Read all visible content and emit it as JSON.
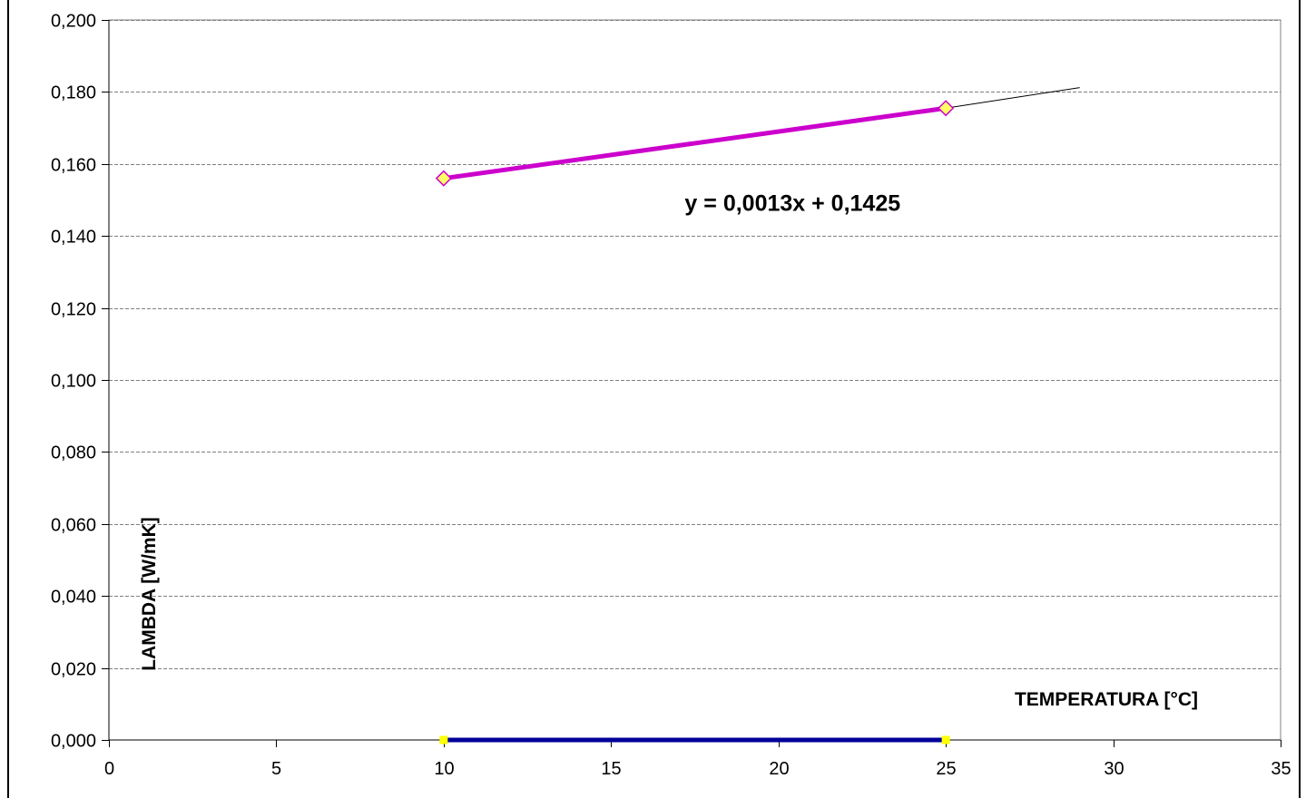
{
  "chart_data": {
    "type": "scatter",
    "title": "",
    "xlabel": "TEMPERATURA [°C]",
    "ylabel": "LAMBDA [W/mK]",
    "xlim": [
      0,
      35
    ],
    "ylim": [
      0,
      0.2
    ],
    "x_ticks": [
      0,
      5,
      10,
      15,
      20,
      25,
      30,
      35
    ],
    "x_tick_labels": [
      "0",
      "5",
      "10",
      "15",
      "20",
      "25",
      "30",
      "35"
    ],
    "y_ticks": [
      0,
      0.02,
      0.04,
      0.06,
      0.08,
      0.1,
      0.12,
      0.14,
      0.16,
      0.18,
      0.2
    ],
    "y_tick_labels": [
      "0,000",
      "0,020",
      "0,040",
      "0,060",
      "0,080",
      "0,100",
      "0,120",
      "0,140",
      "0,160",
      "0,180",
      "0,200"
    ],
    "grid": "horizontal dashed",
    "series": [
      {
        "x": [
          10,
          25
        ],
        "y": [
          0.156,
          0.1755
        ],
        "line_color": "#cc00cc",
        "marker": "diamond",
        "marker_fill": "#ffff66",
        "marker_edge": "#cc00cc"
      },
      {
        "x": [
          10,
          25
        ],
        "y": [
          0,
          0
        ],
        "line_color": "#000099",
        "marker": "square",
        "marker_fill": "#ffff00",
        "marker_edge": "#ffff00"
      }
    ],
    "trendlines": [
      {
        "x": [
          25,
          29
        ],
        "y": [
          0.1755,
          0.1812
        ],
        "color": "#000000"
      },
      {
        "x": [
          25,
          29
        ],
        "y": [
          0,
          0
        ],
        "color": "#000000"
      }
    ],
    "annotations": [
      {
        "text": "y = 0,0013x + 0,1425",
        "x": 17.2,
        "y": 0.147
      }
    ]
  }
}
